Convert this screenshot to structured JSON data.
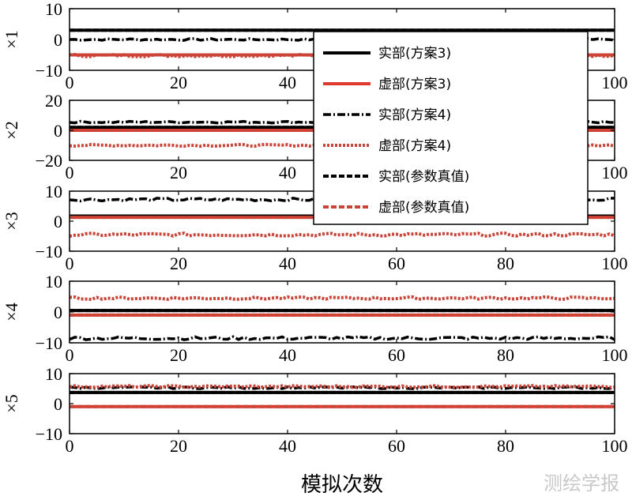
{
  "xlabel": "模拟次数",
  "watermark": "测绘学报",
  "legend_location": "top-right",
  "series_styles": [
    {
      "name": "实部(方案3)",
      "color": "#000000",
      "dash": "solid"
    },
    {
      "name": "虚部(方案3)",
      "color": "#e03a2e",
      "dash": "solid"
    },
    {
      "name": "实部(方案4)",
      "color": "#000000",
      "dash": "dashdot"
    },
    {
      "name": "虚部(方案4)",
      "color": "#c8453a",
      "dash": "dotted"
    },
    {
      "name": "实部(参数真值)",
      "color": "#000000",
      "dash": "dashed"
    },
    {
      "name": "虚部(参数真值)",
      "color": "#c8453a",
      "dash": "dashed"
    }
  ],
  "chart_data": [
    {
      "type": "line",
      "ylabel": "×1",
      "xlim": [
        0,
        100
      ],
      "ylim": [
        -10,
        10
      ],
      "xticks": [
        0,
        20,
        40,
        60,
        80,
        100
      ],
      "yticks": [
        -10,
        0,
        10
      ],
      "series": [
        {
          "name": "实部(方案3)",
          "value": 3.0,
          "noise": 0
        },
        {
          "name": "虚部(方案3)",
          "value": -5.0,
          "noise": 0
        },
        {
          "name": "实部(方案4)",
          "value": 0.0,
          "noise": 0.3
        },
        {
          "name": "虚部(方案4)",
          "value": -5.2,
          "noise": 0.4
        },
        {
          "name": "实部(参数真值)",
          "value": 3.0,
          "noise": 0
        },
        {
          "name": "虚部(参数真值)",
          "value": -5.0,
          "noise": 0
        }
      ]
    },
    {
      "type": "line",
      "ylabel": "×2",
      "xlim": [
        0,
        100
      ],
      "ylim": [
        -20,
        20
      ],
      "xticks": [
        0,
        20,
        40,
        60,
        80,
        100
      ],
      "yticks": [
        -20,
        0,
        20
      ],
      "series": [
        {
          "name": "实部(方案3)",
          "value": 2.0,
          "noise": 0
        },
        {
          "name": "虚部(方案3)",
          "value": 0.0,
          "noise": 0
        },
        {
          "name": "实部(方案4)",
          "value": 5.5,
          "noise": 0.6
        },
        {
          "name": "虚部(方案4)",
          "value": -10.0,
          "noise": 0.6
        },
        {
          "name": "实部(参数真值)",
          "value": 2.0,
          "noise": 0
        },
        {
          "name": "虚部(参数真值)",
          "value": 0.0,
          "noise": 0
        }
      ]
    },
    {
      "type": "line",
      "ylabel": "×3",
      "xlim": [
        0,
        100
      ],
      "ylim": [
        -10,
        10
      ],
      "xticks": [
        0,
        20,
        40,
        60,
        80,
        100
      ],
      "yticks": [
        -10,
        0,
        10
      ],
      "series": [
        {
          "name": "实部(方案3)",
          "value": 1.7,
          "noise": 0
        },
        {
          "name": "虚部(方案3)",
          "value": 1.3,
          "noise": 0
        },
        {
          "name": "实部(方案4)",
          "value": 7.2,
          "noise": 0.5
        },
        {
          "name": "虚部(方案4)",
          "value": -4.5,
          "noise": 0.5
        },
        {
          "name": "实部(参数真值)",
          "value": 1.7,
          "noise": 0
        },
        {
          "name": "虚部(参数真值)",
          "value": 1.3,
          "noise": 0
        }
      ]
    },
    {
      "type": "line",
      "ylabel": "×4",
      "xlim": [
        0,
        100
      ],
      "ylim": [
        -10,
        10
      ],
      "xticks": [
        0,
        20,
        40,
        60,
        80,
        100
      ],
      "yticks": [
        -10,
        0,
        10
      ],
      "series": [
        {
          "name": "实部(方案3)",
          "value": 0.5,
          "noise": 0
        },
        {
          "name": "虚部(方案3)",
          "value": -1.0,
          "noise": 0
        },
        {
          "name": "实部(方案4)",
          "value": -8.5,
          "noise": 0.5
        },
        {
          "name": "虚部(方案4)",
          "value": 4.5,
          "noise": 0.4
        },
        {
          "name": "实部(参数真值)",
          "value": 0.5,
          "noise": 0
        },
        {
          "name": "虚部(参数真值)",
          "value": -1.0,
          "noise": 0
        }
      ]
    },
    {
      "type": "line",
      "ylabel": "×5",
      "xlim": [
        0,
        100
      ],
      "ylim": [
        -10,
        10
      ],
      "xticks": [
        0,
        20,
        40,
        60,
        80,
        100
      ],
      "yticks": [
        -10,
        0,
        10
      ],
      "series": [
        {
          "name": "实部(方案3)",
          "value": 3.7,
          "noise": 0
        },
        {
          "name": "虚部(方案3)",
          "value": -1.0,
          "noise": 0
        },
        {
          "name": "实部(方案4)",
          "value": 5.3,
          "noise": 0.3
        },
        {
          "name": "虚部(方案4)",
          "value": 5.7,
          "noise": 0.3
        },
        {
          "name": "实部(参数真值)",
          "value": 3.7,
          "noise": 0
        },
        {
          "name": "虚部(参数真值)",
          "value": -1.0,
          "noise": 0
        }
      ]
    }
  ]
}
